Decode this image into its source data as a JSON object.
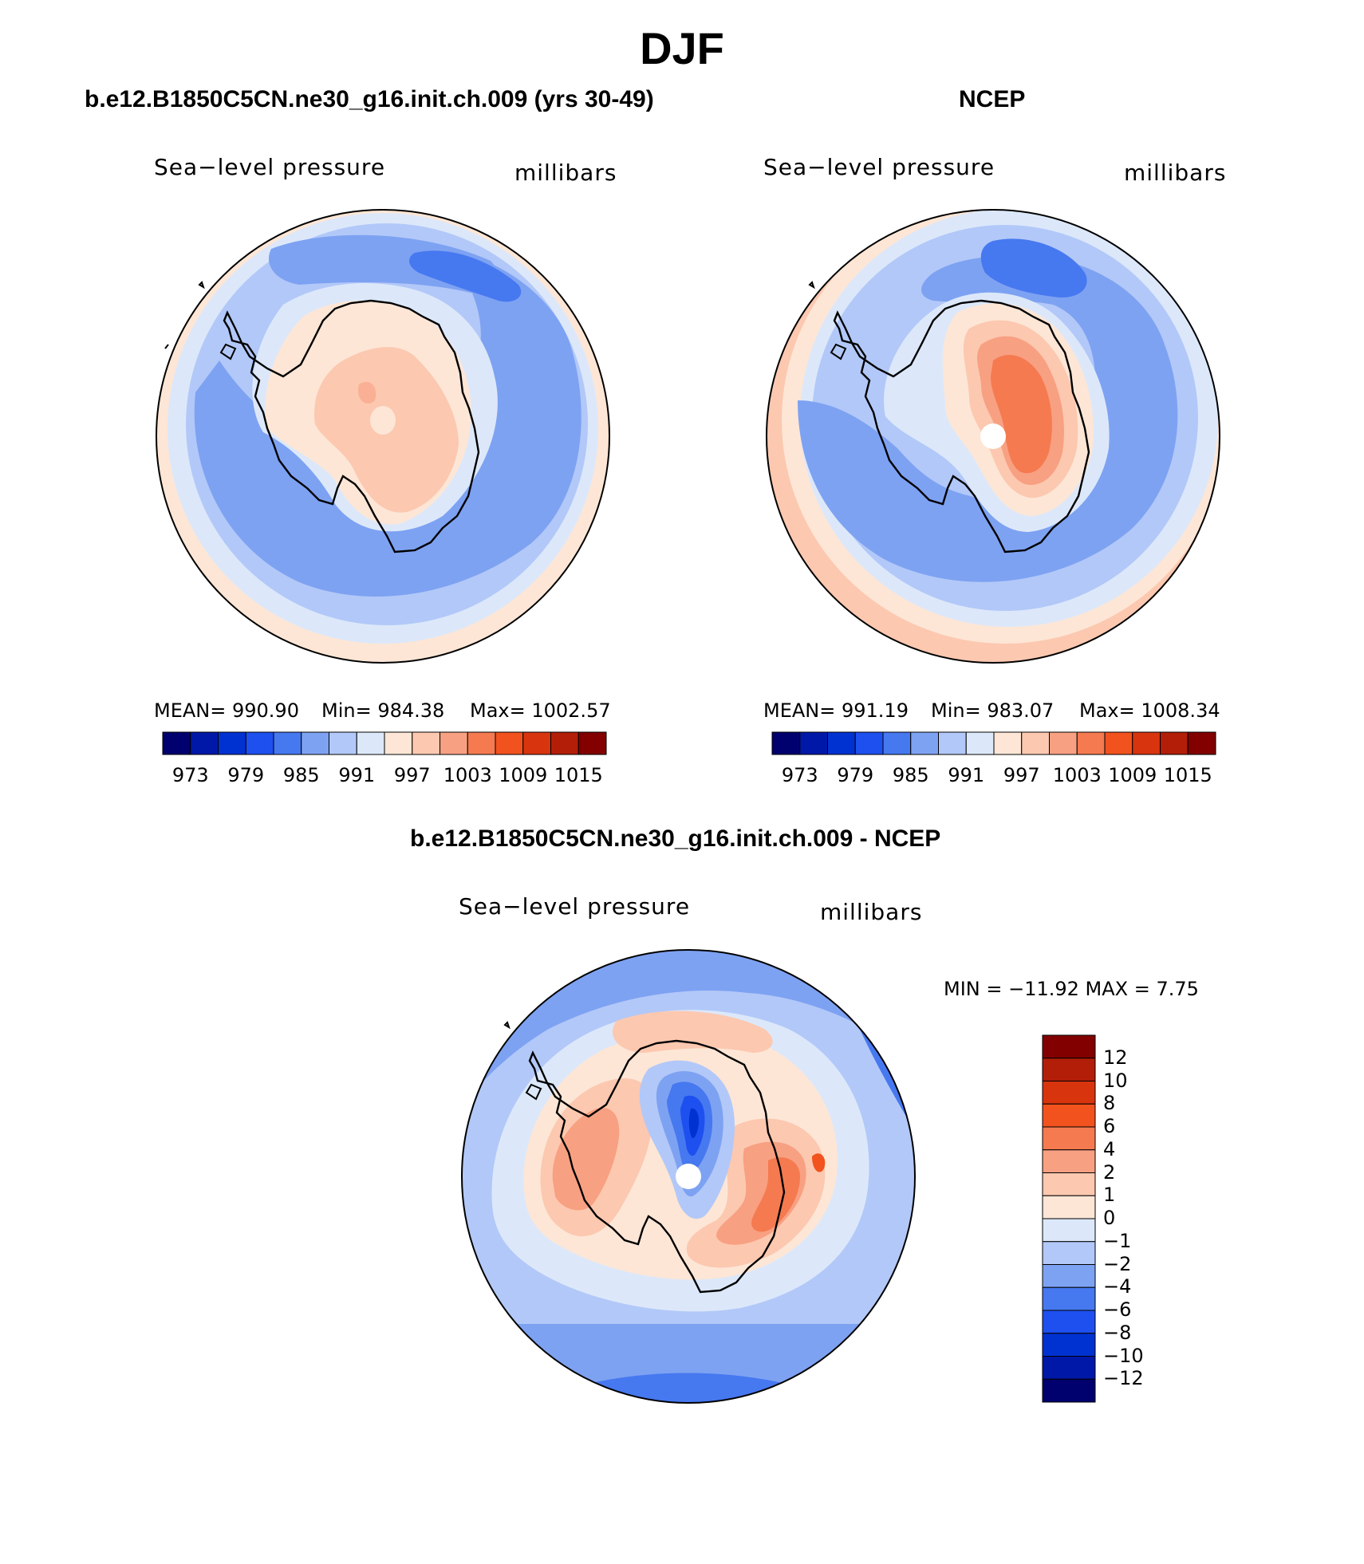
{
  "figure": {
    "title": "DJF"
  },
  "panel_left": {
    "title": "b.e12.B1850C5CN.ne30_g16.init.ch.009 (yrs 30-49)",
    "variable": "Sea−level pressure",
    "units": "millibars",
    "stats": {
      "mean": "MEAN=  990.90",
      "min": "Min=  984.38",
      "max": "Max=  1002.57"
    },
    "colorbar_ticks": [
      "973",
      "979",
      "985",
      "991",
      "997",
      "1003",
      "1009",
      "1015"
    ]
  },
  "panel_right": {
    "title": "NCEP",
    "variable": "Sea−level pressure",
    "units": "millibars",
    "stats": {
      "mean": "MEAN=  991.19",
      "min": "Min=  983.07",
      "max": "Max=  1008.34"
    },
    "colorbar_ticks": [
      "973",
      "979",
      "985",
      "991",
      "997",
      "1003",
      "1009",
      "1015"
    ]
  },
  "panel_diff": {
    "title": "b.e12.B1850C5CN.ne30_g16.init.ch.009 - NCEP",
    "variable": "Sea−level pressure",
    "units": "millibars",
    "minmax": "MIN =  −11.92  MAX =     7.75",
    "colorbar_ticks": [
      "12",
      "10",
      "8",
      "6",
      "4",
      "2",
      "1",
      "0",
      "−1",
      "−2",
      "−4",
      "−6",
      "−8",
      "−10",
      "−12"
    ]
  },
  "colors": {
    "bar16": [
      "#00006e",
      "#0018a8",
      "#0032d2",
      "#1e50f0",
      "#4678f0",
      "#7ea2f2",
      "#b2c8f8",
      "#dce8fa",
      "#fde6d6",
      "#fcc8b0",
      "#f8a082",
      "#f57a50",
      "#f2521e",
      "#d8340e",
      "#b21e08",
      "#820000"
    ],
    "outline": "#000000"
  }
}
